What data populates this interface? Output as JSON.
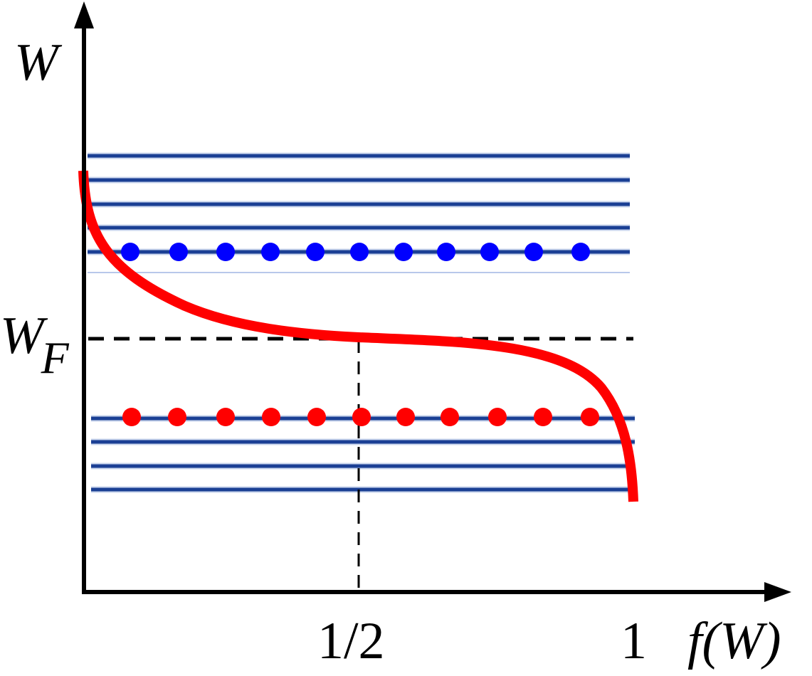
{
  "labels": {
    "y_axis": "W",
    "x_axis": "f(W)",
    "fermi_main": "W",
    "fermi_sub": "F",
    "tick_half": "1/2",
    "tick_one": "1"
  },
  "colors": {
    "axis": "#000000",
    "band_level": "#1a3f94",
    "electron": "#0000ff",
    "hole": "#ff0000",
    "distribution_curve": "#ff0000",
    "fermi_line": "#000000"
  },
  "upper_band": {
    "levels": 5,
    "particles": 11,
    "particle_color": "blue"
  },
  "lower_band": {
    "levels": 4,
    "particles": 11,
    "particle_color": "red"
  }
}
